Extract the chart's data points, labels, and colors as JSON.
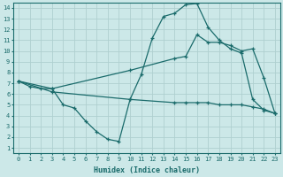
{
  "title": "",
  "xlabel": "Humidex (Indice chaleur)",
  "ylabel": "",
  "bg_color": "#cce8e8",
  "line_color": "#1a6b6b",
  "grid_color": "#afd0d0",
  "xlim": [
    -0.5,
    23.5
  ],
  "ylim": [
    0.5,
    14.5
  ],
  "xticks": [
    0,
    1,
    2,
    3,
    4,
    5,
    6,
    7,
    8,
    9,
    10,
    11,
    12,
    13,
    14,
    15,
    16,
    17,
    18,
    19,
    20,
    21,
    22,
    23
  ],
  "yticks": [
    1,
    2,
    3,
    4,
    5,
    6,
    7,
    8,
    9,
    10,
    11,
    12,
    13,
    14
  ],
  "line1_x": [
    0,
    1,
    2,
    3,
    4,
    5,
    6,
    7,
    8,
    9,
    10,
    11,
    12,
    13,
    14,
    15,
    16,
    17,
    18,
    19,
    20,
    21,
    22,
    23
  ],
  "line1_y": [
    7.2,
    6.7,
    6.5,
    6.5,
    5.0,
    4.7,
    3.5,
    2.5,
    1.8,
    1.6,
    5.5,
    7.8,
    11.2,
    13.2,
    13.5,
    14.3,
    14.4,
    12.2,
    11.0,
    10.2,
    9.8,
    5.5,
    4.5,
    4.2
  ],
  "line2_x": [
    0,
    3,
    10,
    14,
    15,
    16,
    17,
    18,
    19,
    20,
    21,
    22,
    23
  ],
  "line2_y": [
    7.2,
    6.5,
    8.2,
    9.3,
    9.5,
    11.5,
    10.8,
    10.8,
    10.5,
    10.0,
    10.2,
    7.5,
    4.2
  ],
  "line3_x": [
    0,
    3,
    10,
    14,
    15,
    16,
    17,
    18,
    19,
    20,
    21,
    22,
    23
  ],
  "line3_y": [
    7.2,
    6.2,
    5.5,
    5.2,
    5.2,
    5.2,
    5.2,
    5.0,
    5.0,
    5.0,
    4.8,
    4.6,
    4.2
  ]
}
